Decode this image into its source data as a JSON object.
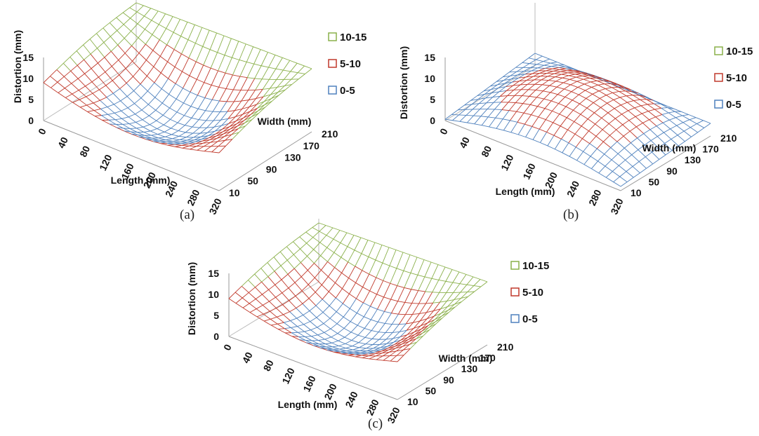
{
  "captions": [
    "(a)",
    "(b)",
    "(c)"
  ],
  "legend_colors": {
    "10-15": "#8ab04a",
    "5-10": "#c0392b",
    "0-5": "#4f81bd"
  },
  "chart_data": [
    {
      "type": "surface",
      "caption": "(a)",
      "zlabel": "Distortion (mm)",
      "xlabel": "Length (mm)",
      "ylabel": "Width (mm)",
      "x_ticks": [
        "0",
        "40",
        "80",
        "120",
        "160",
        "200",
        "240",
        "280",
        "320"
      ],
      "y_ticks": [
        "10",
        "50",
        "90",
        "130",
        "170",
        "210"
      ],
      "z_ticks": [
        "0",
        "5",
        "10",
        "15"
      ],
      "zlim": [
        0,
        15
      ],
      "legend": [
        {
          "label": "10-15",
          "color": "#8ab04a"
        },
        {
          "label": "5-10",
          "color": "#c0392b"
        },
        {
          "label": "0-5",
          "color": "#4f81bd"
        }
      ],
      "shape": "saddle",
      "corners": {
        "x0_y10": 9,
        "x0_y210": 14,
        "x320_y10": 9,
        "x320_y210": 15
      },
      "center_min": 0.5
    },
    {
      "type": "surface",
      "caption": "(b)",
      "zlabel": "Distortion (mm)",
      "xlabel": "Length (mm)",
      "ylabel": "Width (mm)",
      "x_ticks": [
        "0",
        "40",
        "80",
        "120",
        "160",
        "200",
        "240",
        "280",
        "320"
      ],
      "y_ticks": [
        "10",
        "50",
        "90",
        "130",
        "170",
        "210"
      ],
      "z_ticks": [
        "0",
        "5",
        "10",
        "15"
      ],
      "zlim": [
        0,
        15
      ],
      "legend": [
        {
          "label": "10-15",
          "color": "#8ab04a"
        },
        {
          "label": "5-10",
          "color": "#c0392b"
        },
        {
          "label": "0-5",
          "color": "#4f81bd"
        }
      ],
      "shape": "ridge",
      "corners": {
        "x0_y10": 0.3,
        "x0_y210": 3,
        "x320_y10": 1,
        "x320_y210": 3
      },
      "center_max": 10
    },
    {
      "type": "surface",
      "caption": "(c)",
      "zlabel": "Distortion (mm)",
      "xlabel": "Length (mm)",
      "ylabel": "Width (mm)",
      "x_ticks": [
        "0",
        "40",
        "80",
        "120",
        "160",
        "200",
        "240",
        "280",
        "320"
      ],
      "y_ticks": [
        "10",
        "50",
        "90",
        "130",
        "170",
        "210"
      ],
      "z_ticks": [
        "0",
        "5",
        "10",
        "15"
      ],
      "zlim": [
        0,
        15
      ],
      "legend": [
        {
          "label": "10-15",
          "color": "#8ab04a"
        },
        {
          "label": "5-10",
          "color": "#c0392b"
        },
        {
          "label": "0-5",
          "color": "#4f81bd"
        }
      ],
      "shape": "saddle",
      "corners": {
        "x0_y10": 9,
        "x0_y210": 14,
        "x320_y10": 9,
        "x320_y210": 15
      },
      "center_min": 1
    }
  ]
}
